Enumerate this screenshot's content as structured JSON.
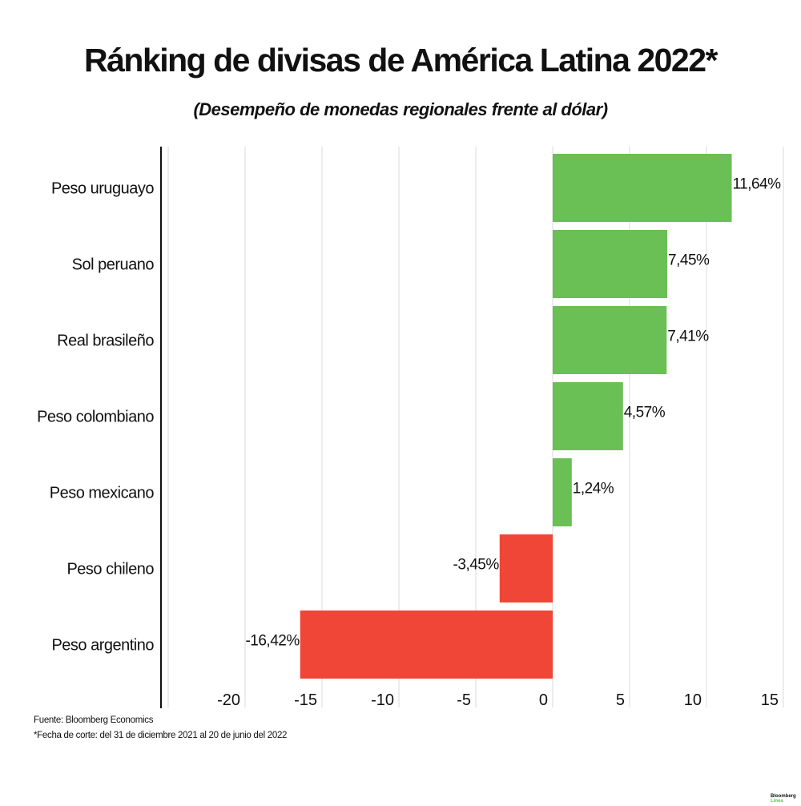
{
  "chart_data": {
    "type": "bar",
    "orientation": "horizontal",
    "title": "Ránking de divisas de América Latina 2022*",
    "subtitle": "(Desempeño de monedas regionales frente al dólar)",
    "categories": [
      "Peso uruguayo",
      "Sol peruano",
      "Real brasileño",
      "Peso colombiano",
      "Peso mexicano",
      "Peso chileno",
      "Peso argentino"
    ],
    "values": [
      11.64,
      7.45,
      7.41,
      4.57,
      1.24,
      -3.45,
      -16.42
    ],
    "data_labels": [
      "11,64%",
      "7,45%",
      "7,41%",
      "4,57%",
      "1,24%",
      "-3,45%",
      "-16,42%"
    ],
    "xlim": [
      -25,
      15
    ],
    "ticks": [
      -20,
      -15,
      -10,
      -5,
      0,
      5,
      10,
      15
    ],
    "tick_labels": [
      "-20",
      "-15",
      "-10",
      "-5",
      "0",
      "5",
      "10",
      "15"
    ],
    "grid": true,
    "colors": {
      "positive": "#6abf55",
      "negative": "#ef4637",
      "grid": "#d9d9d9",
      "axis": "#111111"
    }
  },
  "footer": {
    "source": "Fuente: Bloomberg Economics",
    "note": "*Fecha de corte: del 31 de diciembre 2021 al 20 de junio del 2022"
  },
  "logo": {
    "line1": "Bloomberg",
    "line2": "Línea"
  }
}
